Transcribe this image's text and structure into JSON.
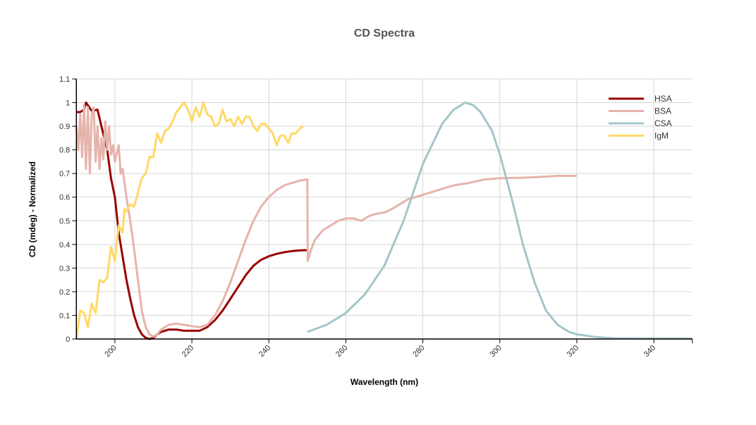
{
  "chart_data": {
    "type": "line",
    "title": "CD Spectra",
    "xlabel": "Wavelength (nm)",
    "ylabel": "CD (mdeg) - Normalized",
    "xlim": [
      190,
      350
    ],
    "ylim": [
      0,
      1.1
    ],
    "xticks": [
      200,
      220,
      240,
      260,
      280,
      300,
      320,
      340
    ],
    "yticks": [
      0,
      0.1,
      0.2,
      0.3,
      0.4,
      0.5,
      0.6,
      0.7,
      0.8,
      0.9,
      1,
      1.1
    ],
    "grid": true,
    "legend_position": "top-right",
    "series": [
      {
        "name": "HSA",
        "color": "#990000",
        "points": [
          [
            190,
            0.96
          ],
          [
            191,
            0.96
          ],
          [
            192,
            0.97
          ],
          [
            192.5,
            1.0
          ],
          [
            194,
            0.965
          ],
          [
            195.5,
            0.97
          ],
          [
            196.5,
            0.9
          ],
          [
            198,
            0.8
          ],
          [
            199,
            0.68
          ],
          [
            200,
            0.6
          ],
          [
            201,
            0.45
          ],
          [
            202,
            0.35
          ],
          [
            203,
            0.25
          ],
          [
            204,
            0.17
          ],
          [
            205,
            0.1
          ],
          [
            206,
            0.05
          ],
          [
            207,
            0.02
          ],
          [
            208,
            0.005
          ],
          [
            209,
            0
          ],
          [
            210,
            0.005
          ],
          [
            211,
            0.02
          ],
          [
            212,
            0.03
          ],
          [
            214,
            0.04
          ],
          [
            216,
            0.04
          ],
          [
            218,
            0.035
          ],
          [
            220,
            0.035
          ],
          [
            222,
            0.035
          ],
          [
            224,
            0.05
          ],
          [
            226,
            0.08
          ],
          [
            228,
            0.12
          ],
          [
            230,
            0.17
          ],
          [
            232,
            0.22
          ],
          [
            234,
            0.27
          ],
          [
            236,
            0.31
          ],
          [
            238,
            0.335
          ],
          [
            240,
            0.35
          ],
          [
            242,
            0.36
          ],
          [
            244,
            0.367
          ],
          [
            246,
            0.372
          ],
          [
            248,
            0.375
          ],
          [
            250,
            0.376
          ]
        ]
      },
      {
        "name": "BSA",
        "color": "#e6b3ab",
        "points": [
          [
            190,
            0.9
          ],
          [
            190.5,
            0.8
          ],
          [
            191,
            0.95
          ],
          [
            191.5,
            0.77
          ],
          [
            192,
            0.99
          ],
          [
            192.5,
            0.72
          ],
          [
            193,
            0.98
          ],
          [
            193.5,
            0.7
          ],
          [
            194,
            0.95
          ],
          [
            194.5,
            0.98
          ],
          [
            195,
            0.75
          ],
          [
            195.5,
            0.9
          ],
          [
            196,
            0.72
          ],
          [
            196.5,
            0.85
          ],
          [
            197,
            0.76
          ],
          [
            197.5,
            0.92
          ],
          [
            198,
            0.8
          ],
          [
            198.5,
            0.9
          ],
          [
            199,
            0.78
          ],
          [
            199.5,
            0.82
          ],
          [
            200,
            0.75
          ],
          [
            201,
            0.82
          ],
          [
            201.5,
            0.7
          ],
          [
            202,
            0.72
          ],
          [
            203,
            0.6
          ],
          [
            204,
            0.5
          ],
          [
            205,
            0.38
          ],
          [
            206,
            0.25
          ],
          [
            207,
            0.12
          ],
          [
            208,
            0.05
          ],
          [
            209,
            0.02
          ],
          [
            210,
            0.01
          ],
          [
            211,
            0.02
          ],
          [
            212,
            0.04
          ],
          [
            214,
            0.06
          ],
          [
            216,
            0.065
          ],
          [
            218,
            0.06
          ],
          [
            220,
            0.055
          ],
          [
            222,
            0.05
          ],
          [
            224,
            0.06
          ],
          [
            226,
            0.1
          ],
          [
            228,
            0.16
          ],
          [
            230,
            0.24
          ],
          [
            232,
            0.33
          ],
          [
            234,
            0.42
          ],
          [
            236,
            0.5
          ],
          [
            238,
            0.56
          ],
          [
            240,
            0.6
          ],
          [
            242,
            0.63
          ],
          [
            244,
            0.65
          ],
          [
            246,
            0.66
          ],
          [
            248,
            0.67
          ],
          [
            250,
            0.675
          ],
          [
            250.1,
            0.33
          ],
          [
            251,
            0.38
          ],
          [
            252,
            0.42
          ],
          [
            254,
            0.46
          ],
          [
            256,
            0.48
          ],
          [
            258,
            0.5
          ],
          [
            260,
            0.51
          ],
          [
            262,
            0.51
          ],
          [
            264,
            0.5
          ],
          [
            266,
            0.52
          ],
          [
            268,
            0.53
          ],
          [
            270,
            0.535
          ],
          [
            272,
            0.55
          ],
          [
            274,
            0.57
          ],
          [
            276,
            0.59
          ],
          [
            278,
            0.6
          ],
          [
            280,
            0.61
          ],
          [
            284,
            0.63
          ],
          [
            288,
            0.65
          ],
          [
            292,
            0.66
          ],
          [
            296,
            0.675
          ],
          [
            300,
            0.68
          ],
          [
            305,
            0.682
          ],
          [
            310,
            0.685
          ],
          [
            315,
            0.69
          ],
          [
            320,
            0.69
          ]
        ]
      },
      {
        "name": "CSA",
        "color": "#a3c6c9",
        "points": [
          [
            250,
            0.03
          ],
          [
            255,
            0.06
          ],
          [
            260,
            0.11
          ],
          [
            265,
            0.19
          ],
          [
            270,
            0.31
          ],
          [
            275,
            0.5
          ],
          [
            280,
            0.74
          ],
          [
            285,
            0.91
          ],
          [
            288,
            0.97
          ],
          [
            291,
            1.0
          ],
          [
            293,
            0.99
          ],
          [
            295,
            0.96
          ],
          [
            298,
            0.88
          ],
          [
            300,
            0.78
          ],
          [
            303,
            0.6
          ],
          [
            306,
            0.4
          ],
          [
            309,
            0.24
          ],
          [
            312,
            0.12
          ],
          [
            315,
            0.06
          ],
          [
            318,
            0.03
          ],
          [
            320,
            0.02
          ],
          [
            325,
            0.008
          ],
          [
            330,
            0.003
          ],
          [
            350,
            0.002
          ]
        ]
      },
      {
        "name": "IgM",
        "color": "#ffd966",
        "points": [
          [
            190,
            0.0
          ],
          [
            191,
            0.12
          ],
          [
            192,
            0.11
          ],
          [
            193,
            0.05
          ],
          [
            194,
            0.15
          ],
          [
            195,
            0.11
          ],
          [
            196,
            0.25
          ],
          [
            197,
            0.24
          ],
          [
            198,
            0.26
          ],
          [
            199,
            0.39
          ],
          [
            200,
            0.33
          ],
          [
            201,
            0.48
          ],
          [
            202,
            0.45
          ],
          [
            202.5,
            0.55
          ],
          [
            203,
            0.54
          ],
          [
            204,
            0.57
          ],
          [
            205,
            0.56
          ],
          [
            206,
            0.62
          ],
          [
            207,
            0.68
          ],
          [
            208,
            0.7
          ],
          [
            209,
            0.77
          ],
          [
            210,
            0.77
          ],
          [
            211,
            0.87
          ],
          [
            212,
            0.83
          ],
          [
            213,
            0.88
          ],
          [
            214,
            0.89
          ],
          [
            215,
            0.92
          ],
          [
            216,
            0.96
          ],
          [
            217,
            0.98
          ],
          [
            218,
            1.0
          ],
          [
            219,
            0.97
          ],
          [
            220,
            0.92
          ],
          [
            221,
            0.98
          ],
          [
            222,
            0.94
          ],
          [
            223,
            1.0
          ],
          [
            224,
            0.95
          ],
          [
            225,
            0.94
          ],
          [
            226,
            0.9
          ],
          [
            227,
            0.91
          ],
          [
            228,
            0.97
          ],
          [
            229,
            0.92
          ],
          [
            230,
            0.93
          ],
          [
            231,
            0.9
          ],
          [
            232,
            0.94
          ],
          [
            233,
            0.91
          ],
          [
            234,
            0.94
          ],
          [
            235,
            0.94
          ],
          [
            236,
            0.9
          ],
          [
            237,
            0.88
          ],
          [
            238,
            0.91
          ],
          [
            239,
            0.91
          ],
          [
            240,
            0.89
          ],
          [
            241,
            0.87
          ],
          [
            242,
            0.82
          ],
          [
            243,
            0.86
          ],
          [
            244,
            0.86
          ],
          [
            245,
            0.83
          ],
          [
            246,
            0.87
          ],
          [
            247,
            0.87
          ],
          [
            248,
            0.89
          ],
          [
            249,
            0.9
          ]
        ]
      }
    ]
  }
}
